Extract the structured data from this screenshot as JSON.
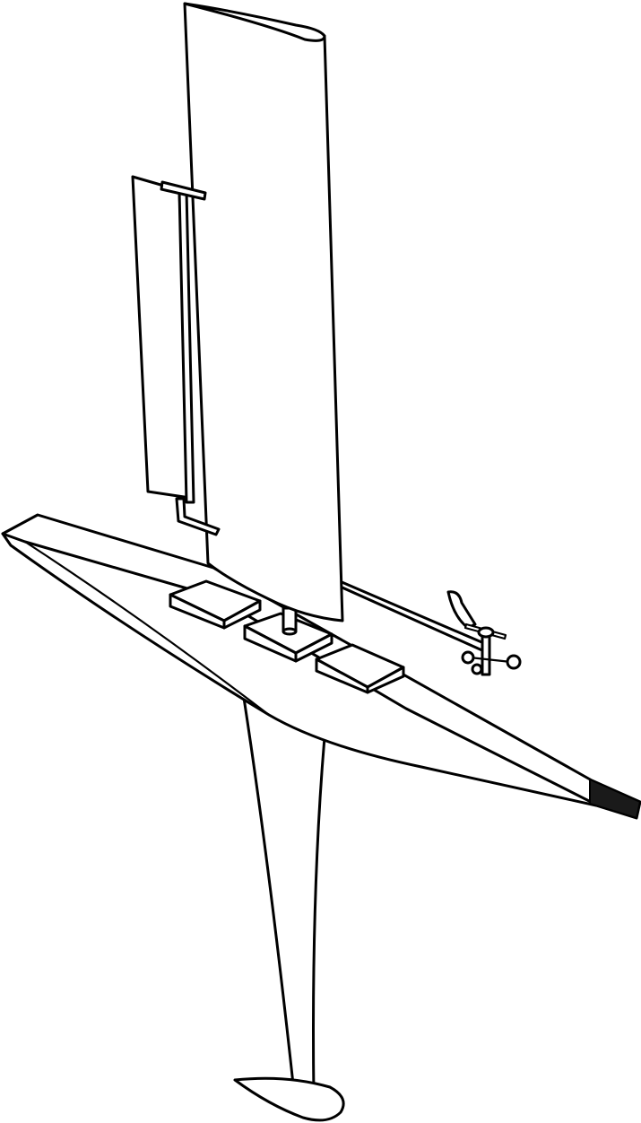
{
  "figure": {
    "subject": "sailboat-drone",
    "line_color": "#000000",
    "background_color": "#ffffff",
    "bow_tip_color": "#1a1a1a"
  }
}
